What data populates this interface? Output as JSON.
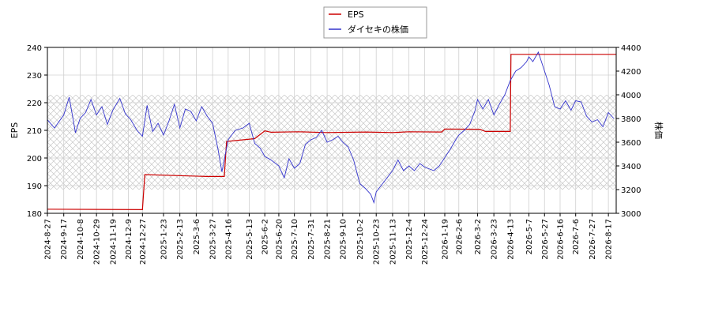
{
  "chart_data": {
    "type": "line",
    "legend": {
      "placement": "top-center",
      "entries": [
        {
          "name": "EPS",
          "color": "#cc0000"
        },
        {
          "name": "ダイセキの株価",
          "color": "#3333cc"
        }
      ]
    },
    "ylabel_left": "EPS",
    "ylabel_right": "株価",
    "ylim_left": [
      180,
      240
    ],
    "ylim_right": [
      3000,
      4400
    ],
    "yticks_left": [
      "180",
      "190",
      "200",
      "210",
      "220",
      "230",
      "240"
    ],
    "yticks_right": [
      "3000",
      "3200",
      "3400",
      "3600",
      "3800",
      "4000",
      "4200",
      "4400"
    ],
    "x_range": [
      "2024-08-27",
      "2026-08-27"
    ],
    "xticks": [
      "2024-8-27",
      "2024-9-17",
      "2024-10-8",
      "2024-10-29",
      "2024-11-19",
      "2024-12-9",
      "2024-12-27",
      "2025-1-23",
      "2025-2-13",
      "2025-3-6",
      "2025-3-27",
      "2025-4-16",
      "2025-5-13",
      "2025-6-2",
      "2025-6-20",
      "2025-7-10",
      "2025-7-31",
      "2025-8-21",
      "2025-9-10",
      "2025-10-2",
      "2025-10-23",
      "2025-11-13",
      "2025-12-4",
      "2025-12-24",
      "2026-1-19",
      "2026-2-6",
      "2026-3-2",
      "2026-3-23",
      "2026-4-13",
      "2026-5-7",
      "2026-5-27",
      "2026-6-16",
      "2026-7-6",
      "2026-7-27",
      "2026-8-17"
    ],
    "grid": true,
    "hatched_band_right": [
      3200,
      4000
    ],
    "series": [
      {
        "name": "EPS",
        "axis": "left",
        "color": "#cc0000",
        "step": true,
        "points": [
          [
            "2024-08-27",
            181.5
          ],
          [
            "2024-12-27",
            181.3
          ],
          [
            "2024-12-30",
            194.0
          ],
          [
            "2025-03-20",
            193.3
          ],
          [
            "2025-04-11",
            193.3
          ],
          [
            "2025-04-14",
            206.0
          ],
          [
            "2025-05-20",
            207.0
          ],
          [
            "2025-06-02",
            209.8
          ],
          [
            "2025-06-10",
            209.3
          ],
          [
            "2025-07-15",
            209.5
          ],
          [
            "2025-08-20",
            209.2
          ],
          [
            "2025-10-10",
            209.4
          ],
          [
            "2025-11-13",
            209.2
          ],
          [
            "2025-12-04",
            209.5
          ],
          [
            "2026-01-15",
            209.4
          ],
          [
            "2026-01-19",
            210.5
          ],
          [
            "2026-03-05",
            210.4
          ],
          [
            "2026-03-12",
            209.6
          ],
          [
            "2026-04-13",
            209.6
          ],
          [
            "2026-04-14",
            237.5
          ],
          [
            "2026-08-27",
            237.5
          ]
        ]
      },
      {
        "name": "ダイセキの株価",
        "axis": "right",
        "color": "#3333cc",
        "points": [
          [
            "2024-08-27",
            3790
          ],
          [
            "2024-09-05",
            3720
          ],
          [
            "2024-09-17",
            3830
          ],
          [
            "2024-09-24",
            3980
          ],
          [
            "2024-10-02",
            3680
          ],
          [
            "2024-10-08",
            3800
          ],
          [
            "2024-10-15",
            3850
          ],
          [
            "2024-10-22",
            3960
          ],
          [
            "2024-10-29",
            3830
          ],
          [
            "2024-11-05",
            3900
          ],
          [
            "2024-11-12",
            3750
          ],
          [
            "2024-11-19",
            3870
          ],
          [
            "2024-11-28",
            3970
          ],
          [
            "2024-12-05",
            3840
          ],
          [
            "2024-12-12",
            3790
          ],
          [
            "2024-12-20",
            3700
          ],
          [
            "2024-12-27",
            3650
          ],
          [
            "2025-01-02",
            3910
          ],
          [
            "2025-01-09",
            3690
          ],
          [
            "2025-01-16",
            3760
          ],
          [
            "2025-01-23",
            3660
          ],
          [
            "2025-01-30",
            3780
          ],
          [
            "2025-02-06",
            3920
          ],
          [
            "2025-02-13",
            3720
          ],
          [
            "2025-02-20",
            3880
          ],
          [
            "2025-02-27",
            3860
          ],
          [
            "2025-03-06",
            3780
          ],
          [
            "2025-03-13",
            3900
          ],
          [
            "2025-03-20",
            3820
          ],
          [
            "2025-03-27",
            3760
          ],
          [
            "2025-04-03",
            3540
          ],
          [
            "2025-04-08",
            3350
          ],
          [
            "2025-04-16",
            3620
          ],
          [
            "2025-04-25",
            3700
          ],
          [
            "2025-05-05",
            3720
          ],
          [
            "2025-05-13",
            3760
          ],
          [
            "2025-05-20",
            3590
          ],
          [
            "2025-05-27",
            3550
          ],
          [
            "2025-06-02",
            3480
          ],
          [
            "2025-06-10",
            3450
          ],
          [
            "2025-06-20",
            3400
          ],
          [
            "2025-06-27",
            3300
          ],
          [
            "2025-07-03",
            3460
          ],
          [
            "2025-07-10",
            3380
          ],
          [
            "2025-07-17",
            3420
          ],
          [
            "2025-07-24",
            3580
          ],
          [
            "2025-07-31",
            3620
          ],
          [
            "2025-08-07",
            3640
          ],
          [
            "2025-08-14",
            3700
          ],
          [
            "2025-08-21",
            3600
          ],
          [
            "2025-08-28",
            3620
          ],
          [
            "2025-09-04",
            3650
          ],
          [
            "2025-09-10",
            3600
          ],
          [
            "2025-09-17",
            3560
          ],
          [
            "2025-09-24",
            3450
          ],
          [
            "2025-10-02",
            3250
          ],
          [
            "2025-10-09",
            3210
          ],
          [
            "2025-10-16",
            3160
          ],
          [
            "2025-10-20",
            3090
          ],
          [
            "2025-10-23",
            3180
          ],
          [
            "2025-10-30",
            3240
          ],
          [
            "2025-11-06",
            3300
          ],
          [
            "2025-11-13",
            3360
          ],
          [
            "2025-11-20",
            3450
          ],
          [
            "2025-11-27",
            3360
          ],
          [
            "2025-12-04",
            3400
          ],
          [
            "2025-12-11",
            3360
          ],
          [
            "2025-12-18",
            3420
          ],
          [
            "2025-12-24",
            3390
          ],
          [
            "2026-01-05",
            3360
          ],
          [
            "2026-01-12",
            3400
          ],
          [
            "2026-01-19",
            3470
          ],
          [
            "2026-01-26",
            3540
          ],
          [
            "2026-02-02",
            3620
          ],
          [
            "2026-02-06",
            3660
          ],
          [
            "2026-02-13",
            3700
          ],
          [
            "2026-02-20",
            3750
          ],
          [
            "2026-02-27",
            3870
          ],
          [
            "2026-03-02",
            3960
          ],
          [
            "2026-03-09",
            3880
          ],
          [
            "2026-03-16",
            3960
          ],
          [
            "2026-03-23",
            3830
          ],
          [
            "2026-03-30",
            3920
          ],
          [
            "2026-04-06",
            4000
          ],
          [
            "2026-04-13",
            4120
          ],
          [
            "2026-04-20",
            4200
          ],
          [
            "2026-04-27",
            4230
          ],
          [
            "2026-05-04",
            4280
          ],
          [
            "2026-05-07",
            4320
          ],
          [
            "2026-05-12",
            4280
          ],
          [
            "2026-05-19",
            4360
          ],
          [
            "2026-05-27",
            4200
          ],
          [
            "2026-06-02",
            4080
          ],
          [
            "2026-06-09",
            3900
          ],
          [
            "2026-06-16",
            3880
          ],
          [
            "2026-06-23",
            3950
          ],
          [
            "2026-06-30",
            3870
          ],
          [
            "2026-07-06",
            3950
          ],
          [
            "2026-07-13",
            3940
          ],
          [
            "2026-07-20",
            3820
          ],
          [
            "2026-07-27",
            3770
          ],
          [
            "2026-08-03",
            3790
          ],
          [
            "2026-08-10",
            3730
          ],
          [
            "2026-08-17",
            3850
          ],
          [
            "2026-08-24",
            3800
          ]
        ]
      }
    ]
  }
}
